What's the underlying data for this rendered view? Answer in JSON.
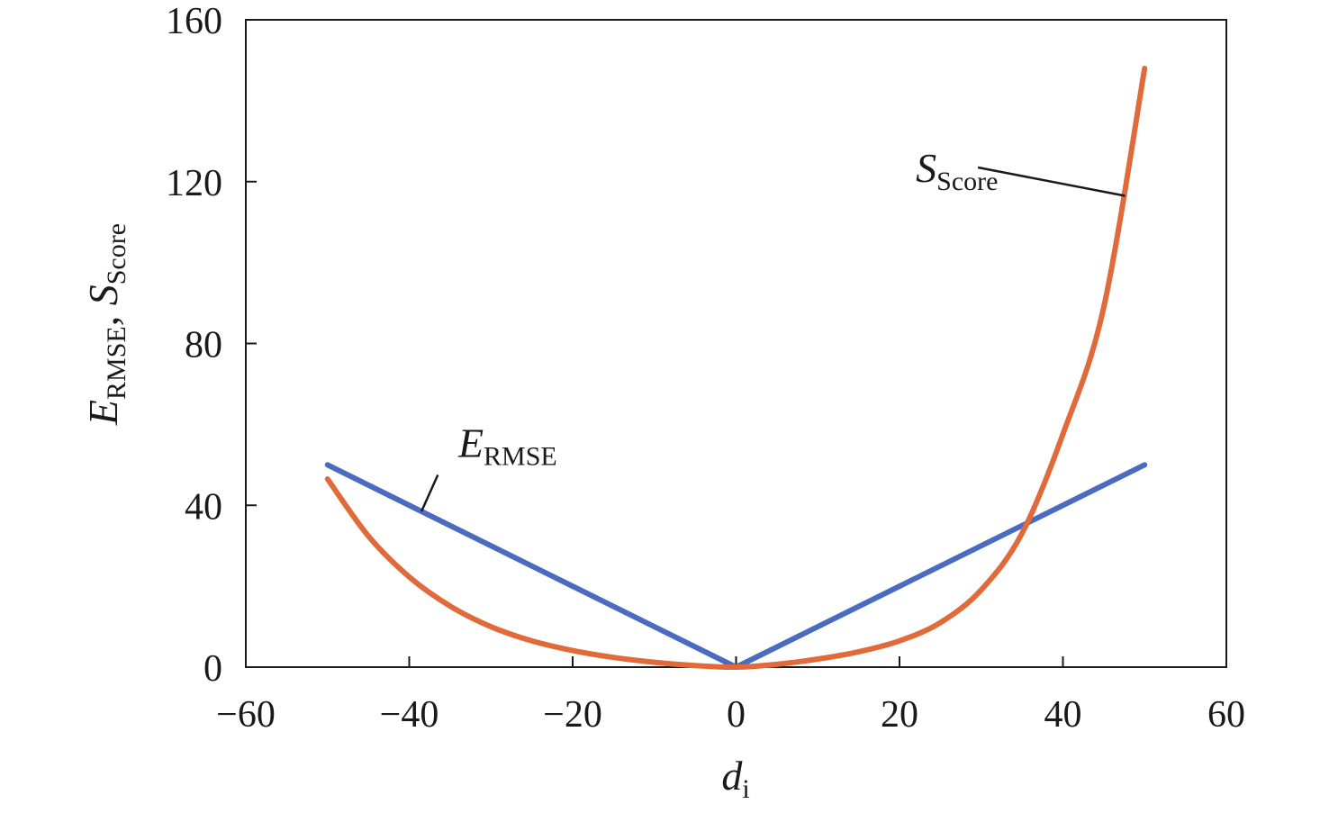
{
  "chart_data": {
    "type": "line",
    "xlabel": {
      "main": "d",
      "sub": "i"
    },
    "ylabel": [
      {
        "main": "E",
        "sub": "RMSE"
      },
      {
        "sep": ", "
      },
      {
        "main": "S",
        "sub": "Score"
      }
    ],
    "xlim": [
      -60,
      60
    ],
    "ylim": [
      0,
      160
    ],
    "xticks": [
      -60,
      -40,
      -20,
      0,
      20,
      40,
      60
    ],
    "xtick_labels": [
      "−60",
      "−40",
      "−20",
      "0",
      "20",
      "40",
      "60"
    ],
    "yticks": [
      0,
      40,
      80,
      120,
      160
    ],
    "ytick_labels": [
      "0",
      "40",
      "80",
      "120",
      "160"
    ],
    "grid": false,
    "series": [
      {
        "name": {
          "main": "E",
          "sub": "RMSE"
        },
        "color": "#4a6bbf",
        "x": [
          -50,
          -40,
          -30,
          -20,
          -10,
          0,
          10,
          20,
          30,
          40,
          50
        ],
        "y": [
          50,
          40,
          30,
          20,
          10,
          0,
          10,
          20,
          30,
          40,
          50
        ]
      },
      {
        "name": {
          "main": "S",
          "sub": "Score"
        },
        "color": "#e06a3a",
        "x": [
          -50,
          -45,
          -40,
          -35,
          -30,
          -25,
          -20,
          -15,
          -10,
          -5,
          0,
          5,
          10,
          15,
          20,
          25,
          30,
          35,
          40,
          45,
          50
        ],
        "y": [
          46.5,
          32.4,
          22.3,
          15.1,
          10.0,
          6.5,
          4.1,
          2.4,
          1.2,
          0.4,
          0,
          0.7,
          2.0,
          3.8,
          6.5,
          11.0,
          19.1,
          33.1,
          57.6,
          89.0,
          148.0
        ]
      }
    ],
    "annotations": [
      {
        "series": 0,
        "label_x": -34,
        "label_y": 52,
        "line_from": [
          -36.5,
          47.5
        ],
        "line_to": [
          -38.5,
          38.5
        ]
      },
      {
        "series": 1,
        "label_x": 22,
        "label_y": 120,
        "line_from": [
          29.6,
          123.5
        ],
        "line_to": [
          47.6,
          116.5
        ]
      }
    ]
  }
}
